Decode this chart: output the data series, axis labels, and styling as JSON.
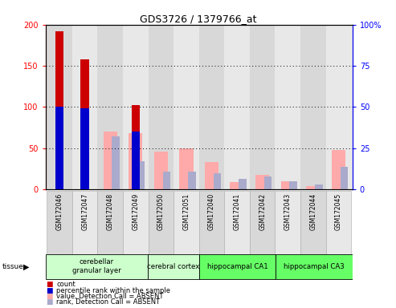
{
  "title": "GDS3726 / 1379766_at",
  "samples": [
    "GSM172046",
    "GSM172047",
    "GSM172048",
    "GSM172049",
    "GSM172050",
    "GSM172051",
    "GSM172040",
    "GSM172041",
    "GSM172042",
    "GSM172043",
    "GSM172044",
    "GSM172045"
  ],
  "count_values": [
    192,
    158,
    0,
    102,
    0,
    0,
    0,
    0,
    0,
    0,
    0,
    0
  ],
  "rank_values_pct": [
    50,
    49,
    0,
    35,
    0,
    0,
    0,
    0,
    0,
    0,
    0,
    0
  ],
  "absent_value_values": [
    0,
    0,
    70,
    68,
    46,
    50,
    33,
    9,
    18,
    10,
    4,
    48
  ],
  "absent_rank_values_pct": [
    0,
    0,
    32,
    17,
    11,
    11,
    10,
    6.5,
    8,
    5,
    3,
    13.5
  ],
  "tissues": [
    {
      "label": "cerebellar\ngranular layer",
      "start": 0,
      "end": 4,
      "color": "#ccffcc"
    },
    {
      "label": "cerebral cortex",
      "start": 4,
      "end": 6,
      "color": "#ccffcc"
    },
    {
      "label": "hippocampal CA1",
      "start": 6,
      "end": 9,
      "color": "#66ff66"
    },
    {
      "label": "hippocampal CA3",
      "start": 9,
      "end": 12,
      "color": "#66ff66"
    }
  ],
  "ylim_left": [
    0,
    200
  ],
  "ylim_right": [
    0,
    100
  ],
  "yticks_left": [
    0,
    50,
    100,
    150,
    200
  ],
  "yticks_right": [
    0,
    25,
    50,
    75,
    100
  ],
  "ytick_labels_left": [
    "0",
    "50",
    "100",
    "150",
    "200"
  ],
  "ytick_labels_right": [
    "0",
    "25",
    "50",
    "75",
    "100%"
  ],
  "color_count": "#cc0000",
  "color_rank": "#0000cc",
  "color_absent_value": "#ffaaaa",
  "color_absent_rank": "#aaaacc",
  "legend_entries": [
    {
      "color": "#cc0000",
      "label": "count"
    },
    {
      "color": "#0000cc",
      "label": "percentile rank within the sample"
    },
    {
      "color": "#ffaaaa",
      "label": "value, Detection Call = ABSENT"
    },
    {
      "color": "#aaaacc",
      "label": "rank, Detection Call = ABSENT"
    }
  ],
  "tissue_label": "tissue"
}
